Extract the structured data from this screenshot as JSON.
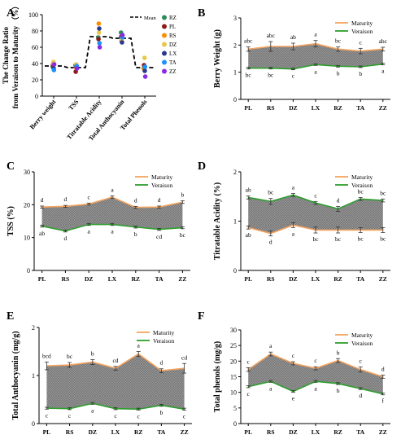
{
  "colors": {
    "maturity": "#F4A460",
    "veraison": "#2E9E2E",
    "fill": "#8C8C8C",
    "mean_line": "#000000"
  },
  "chart_data": [
    {
      "panel": "A",
      "type": "scatter",
      "ylabel": "The Change Ratio from Veraison to Maturity （%）",
      "ylim": [
        0,
        100
      ],
      "yticks": [
        "0",
        "20",
        "40",
        "60",
        "80",
        "100"
      ],
      "categories": [
        "Berry weight",
        "TSS",
        "Titratable Acidity",
        "Total Anthocyanin",
        "Total Phenols"
      ],
      "legend": [
        "Mean",
        "RZ",
        "PL",
        "RS",
        "DZ",
        "LX",
        "TA",
        "ZZ"
      ],
      "mean": [
        37,
        35,
        73,
        71,
        35
      ],
      "series": [
        {
          "name": "RZ",
          "color": "#2E8B57",
          "values": [
            36,
            38,
            72,
            78,
            34
          ]
        },
        {
          "name": "PL",
          "color": "#8B1A1A",
          "values": [
            38,
            30,
            70,
            73,
            38
          ]
        },
        {
          "name": "RS",
          "color": "#FF8C00",
          "values": [
            40,
            35,
            89,
            68,
            33
          ]
        },
        {
          "name": "DZ",
          "color": "#E8C84A",
          "values": [
            42,
            39,
            78,
            70,
            47
          ]
        },
        {
          "name": "LX",
          "color": "#2B3A8F",
          "values": [
            34,
            36,
            83,
            66,
            31
          ]
        },
        {
          "name": "TA",
          "color": "#1E90FF",
          "values": [
            32,
            37,
            65,
            72,
            36
          ]
        },
        {
          "name": "ZZ",
          "color": "#8A2BE2",
          "values": [
            39,
            34,
            60,
            75,
            24
          ]
        }
      ],
      "extra_series_colors": [
        "#20B2AA",
        "#556B2F"
      ]
    },
    {
      "panel": "B",
      "type": "area",
      "ylabel": "Berry Weight  (g)",
      "ylim": [
        0,
        3
      ],
      "yticks": [
        "0",
        "1",
        "2",
        "3"
      ],
      "categories": [
        "PL",
        "RS",
        "DZ",
        "LX",
        "RZ",
        "TA",
        "ZZ"
      ],
      "series": [
        {
          "name": "Maturity",
          "values": [
            1.85,
            1.95,
            1.95,
            2.05,
            1.85,
            1.78,
            1.85
          ],
          "errors": [
            0.08,
            0.18,
            0.12,
            0.12,
            0.08,
            0.1,
            0.07
          ],
          "letters": [
            "abc",
            "abc",
            "ab",
            "a",
            "bc",
            "c",
            "abc"
          ]
        },
        {
          "name": "Veraison",
          "values": [
            1.15,
            1.15,
            1.12,
            1.28,
            1.22,
            1.2,
            1.3
          ],
          "errors": [
            0.03,
            0.03,
            0.03,
            0.03,
            0.03,
            0.03,
            0.03
          ],
          "letters": [
            "bc",
            "bc",
            "c",
            "a",
            "b",
            "b",
            "a"
          ]
        }
      ]
    },
    {
      "panel": "C",
      "type": "area",
      "ylabel": "TSS  (%)",
      "ylim": [
        0,
        30
      ],
      "yticks": [
        "0",
        "10",
        "20",
        "30"
      ],
      "categories": [
        "PL",
        "RS",
        "DZ",
        "LX",
        "RZ",
        "TA",
        "ZZ"
      ],
      "series": [
        {
          "name": "Maturity",
          "values": [
            19.3,
            19.5,
            20.2,
            22.3,
            19.2,
            19.3,
            20.8
          ],
          "errors": [
            0.3,
            0.3,
            0.3,
            0.4,
            0.3,
            0.3,
            0.4
          ],
          "letters": [
            "d",
            "d",
            "c",
            "a",
            "d",
            "d",
            "b"
          ]
        },
        {
          "name": "Veraison",
          "values": [
            13.5,
            12.0,
            14.0,
            14.0,
            13.2,
            12.5,
            13.0
          ],
          "errors": [
            0.3,
            0.3,
            0.3,
            0.3,
            0.3,
            0.3,
            0.3
          ],
          "letters": [
            "ab",
            "d",
            "a",
            "a",
            "b",
            "cd",
            "bc"
          ]
        }
      ]
    },
    {
      "panel": "D",
      "type": "area",
      "ylabel": "Titratable Acidity  (%)",
      "ylim": [
        0,
        2
      ],
      "yticks": [
        "0",
        "1",
        "2"
      ],
      "categories": [
        "PL",
        "RS",
        "DZ",
        "LX",
        "RZ",
        "TA",
        "ZZ"
      ],
      "series": [
        {
          "name": "Maturity",
          "values": [
            0.87,
            0.75,
            0.92,
            0.82,
            0.82,
            0.82,
            0.82
          ],
          "errors": [
            0.03,
            0.05,
            0.05,
            0.06,
            0.06,
            0.05,
            0.05
          ],
          "letters": [
            "ab",
            "d",
            "a",
            "bc",
            "bc",
            "bc",
            "bc"
          ]
        },
        {
          "name": "Veraison",
          "values": [
            1.48,
            1.4,
            1.53,
            1.37,
            1.25,
            1.45,
            1.42
          ],
          "errors": [
            0.03,
            0.06,
            0.03,
            0.03,
            0.05,
            0.03,
            0.03
          ],
          "letters": [
            "ab",
            "bc",
            "a",
            "c",
            "d",
            "bc",
            "bc"
          ]
        }
      ]
    },
    {
      "panel": "E",
      "type": "area",
      "ylabel": "Total Anthocyanin  (mg/g)",
      "ylim": [
        0,
        2
      ],
      "yticks": [
        "0",
        "1",
        "2"
      ],
      "categories": [
        "PL",
        "RS",
        "DZ",
        "LX",
        "RZ",
        "TA",
        "ZZ"
      ],
      "series": [
        {
          "name": "Maturity",
          "values": [
            1.2,
            1.22,
            1.28,
            1.15,
            1.45,
            1.1,
            1.15
          ],
          "errors": [
            0.08,
            0.05,
            0.05,
            0.04,
            0.05,
            0.04,
            0.1
          ],
          "letters": [
            "bcd",
            "bc",
            "b",
            "cd",
            "a",
            "d",
            "cd"
          ]
        },
        {
          "name": "Veraison",
          "values": [
            0.32,
            0.31,
            0.42,
            0.31,
            0.3,
            0.38,
            0.3
          ],
          "errors": [
            0.02,
            0.02,
            0.02,
            0.02,
            0.02,
            0.02,
            0.02
          ],
          "letters": [
            "c",
            "c",
            "a",
            "c",
            "c",
            "b",
            "c"
          ]
        }
      ]
    },
    {
      "panel": "F",
      "type": "area",
      "ylabel": "Total phenols (mg/g)",
      "ylim": [
        0,
        30
      ],
      "yticks": [
        "0",
        "5",
        "10",
        "15",
        "20",
        "25",
        "30"
      ],
      "categories": [
        "PL",
        "RS",
        "DZ",
        "LX",
        "RZ",
        "TA",
        "ZZ"
      ],
      "series": [
        {
          "name": "Maturity",
          "values": [
            17.3,
            22.3,
            19.3,
            17.7,
            20.2,
            17.3,
            15.0
          ],
          "errors": [
            0.6,
            0.6,
            0.5,
            0.5,
            0.6,
            0.8,
            0.5
          ],
          "letters": [
            "c",
            "a",
            "c",
            "c",
            "b",
            "c",
            "d"
          ]
        },
        {
          "name": "Veraison",
          "values": [
            11.8,
            13.5,
            10.3,
            13.5,
            12.8,
            11.2,
            9.5
          ],
          "errors": [
            0.3,
            0.3,
            0.3,
            0.3,
            0.3,
            0.3,
            0.3
          ],
          "letters": [
            "c",
            "a",
            "e",
            "a",
            "b",
            "d",
            "f"
          ]
        }
      ]
    }
  ]
}
